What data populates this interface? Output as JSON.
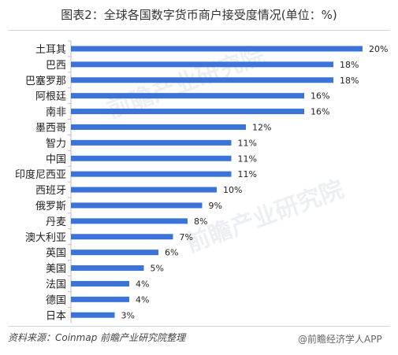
{
  "title": "图表2：全球各国数字货币商户接受度情况(单位：%)",
  "source_text": "资料来源：Coinmap 前瞻产业研究院整理",
  "watermark_text": "前瞻产业研究院",
  "footer_text": "@前瞻经济学人APP",
  "bar_color": "#3b73d9",
  "chart_data": {
    "type": "bar",
    "orientation": "horizontal",
    "categories": [
      "土耳其",
      "巴西",
      "巴塞罗那",
      "阿根廷",
      "南非",
      "墨西哥",
      "智力",
      "中国",
      "印度尼西亚",
      "西班牙",
      "俄罗斯",
      "丹麦",
      "澳大利亚",
      "英国",
      "美国",
      "法国",
      "德国",
      "日本"
    ],
    "values": [
      20,
      18,
      18,
      16,
      16,
      12,
      11,
      11,
      11,
      10,
      9,
      8,
      7,
      6,
      5,
      4,
      4,
      3
    ],
    "value_suffix": "%",
    "xlim": [
      0,
      20
    ],
    "grid": false,
    "legend": "none"
  }
}
